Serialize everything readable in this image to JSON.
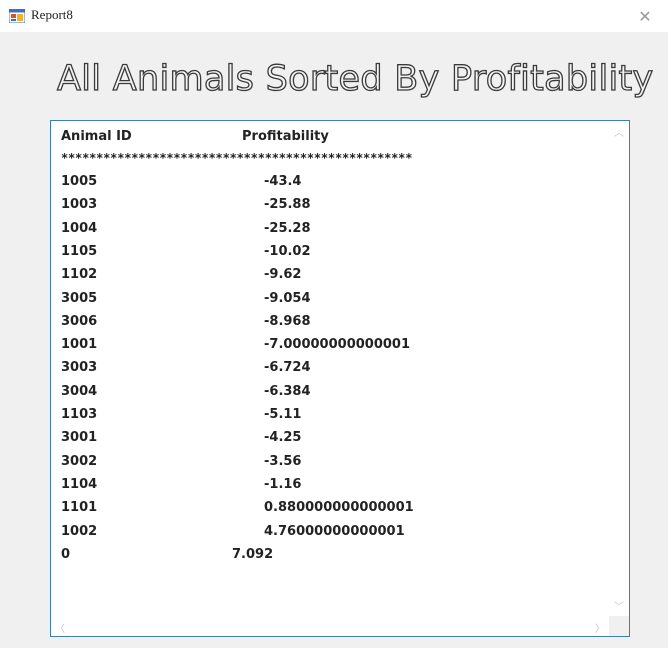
{
  "window": {
    "title": "Report8",
    "close_glyph": "✕"
  },
  "report": {
    "heading": "All Animals Sorted By Profitability",
    "col_id_label": "Animal ID",
    "col_value_label": "Profitability",
    "separator": "**************************************************",
    "rows": [
      {
        "id": "1005",
        "value": "-43.4"
      },
      {
        "id": "1003",
        "value": "-25.88"
      },
      {
        "id": "1004",
        "value": "-25.28"
      },
      {
        "id": "1105",
        "value": "-10.02"
      },
      {
        "id": "1102",
        "value": "-9.62"
      },
      {
        "id": "3005",
        "value": "-9.054"
      },
      {
        "id": "3006",
        "value": "-8.968"
      },
      {
        "id": "1001",
        "value": "-7.00000000000001"
      },
      {
        "id": "3003",
        "value": "-6.724"
      },
      {
        "id": "3004",
        "value": "-6.384"
      },
      {
        "id": "1103",
        "value": "-5.11"
      },
      {
        "id": "3001",
        "value": "-4.25"
      },
      {
        "id": "3002",
        "value": "-3.56"
      },
      {
        "id": "1104",
        "value": "-1.16"
      },
      {
        "id": "1101",
        "value": "0.880000000000001"
      },
      {
        "id": "1002",
        "value": "4.76000000000001"
      },
      {
        "id": "0",
        "value": "7.092"
      }
    ]
  },
  "scrollbar": {
    "up": "︿",
    "down": "﹀",
    "left": "〈",
    "right": "〉"
  },
  "icons": {
    "app": "app-icon",
    "close": "close-icon"
  }
}
